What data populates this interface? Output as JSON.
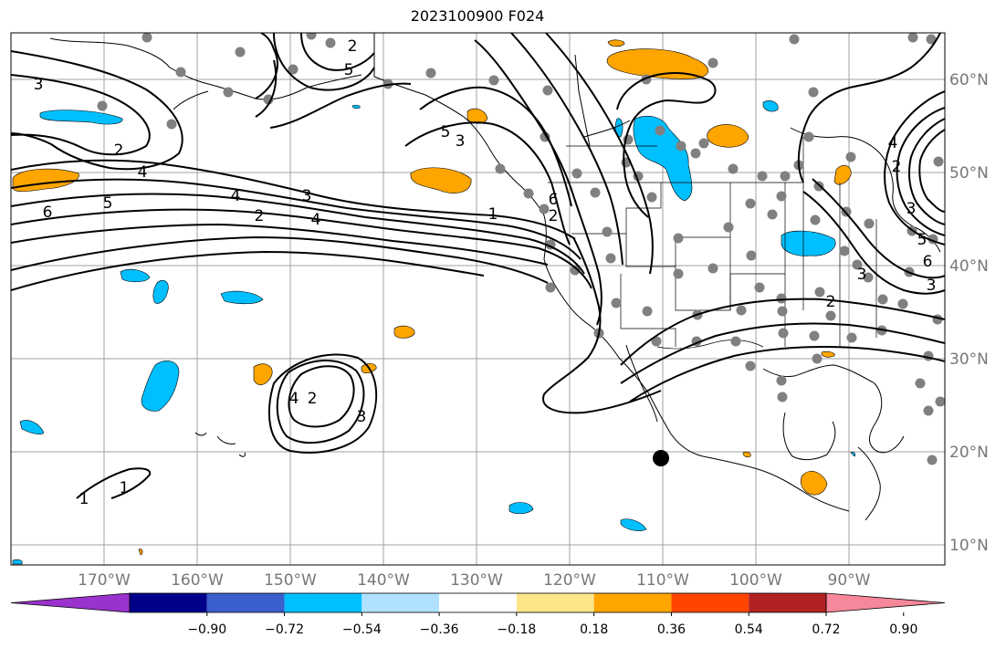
{
  "title": "2023100900 F024",
  "map": {
    "longitude_labels": [
      "170°W",
      "160°W",
      "150°W",
      "140°W",
      "130°W",
      "120°W",
      "110°W",
      "100°W",
      "90°W"
    ],
    "latitude_labels": [
      "60°N",
      "50°N",
      "40°N",
      "30°N",
      "20°N",
      "10°N"
    ],
    "grid": true,
    "contour_labels": [
      "3",
      "2",
      "4",
      "5",
      "6",
      "4",
      "2",
      "3",
      "4",
      "5",
      "2",
      "3",
      "5",
      "6",
      "2",
      "4",
      "2",
      "3",
      "5",
      "6",
      "3",
      "2",
      "3",
      "4",
      "2",
      "3",
      "1",
      "1",
      "1"
    ],
    "marker_color": "#000000",
    "station_dot_color": "#808080",
    "fill_colors": {
      "positive": "#ffa500",
      "negative": "#00bfff"
    }
  },
  "colorbar": {
    "colors": [
      "#9a32cd",
      "#00008b",
      "#3a5fcd",
      "#00bfff",
      "#b0e2ff",
      "#ffffff",
      "#fde68a",
      "#ffa500",
      "#ff4500",
      "#b22222",
      "#f7879a"
    ],
    "tick_labels": [
      "−0.90",
      "−0.72",
      "−0.54",
      "−0.36",
      "−0.18",
      "0.18",
      "0.36",
      "0.54",
      "0.72",
      "0.90"
    ]
  }
}
